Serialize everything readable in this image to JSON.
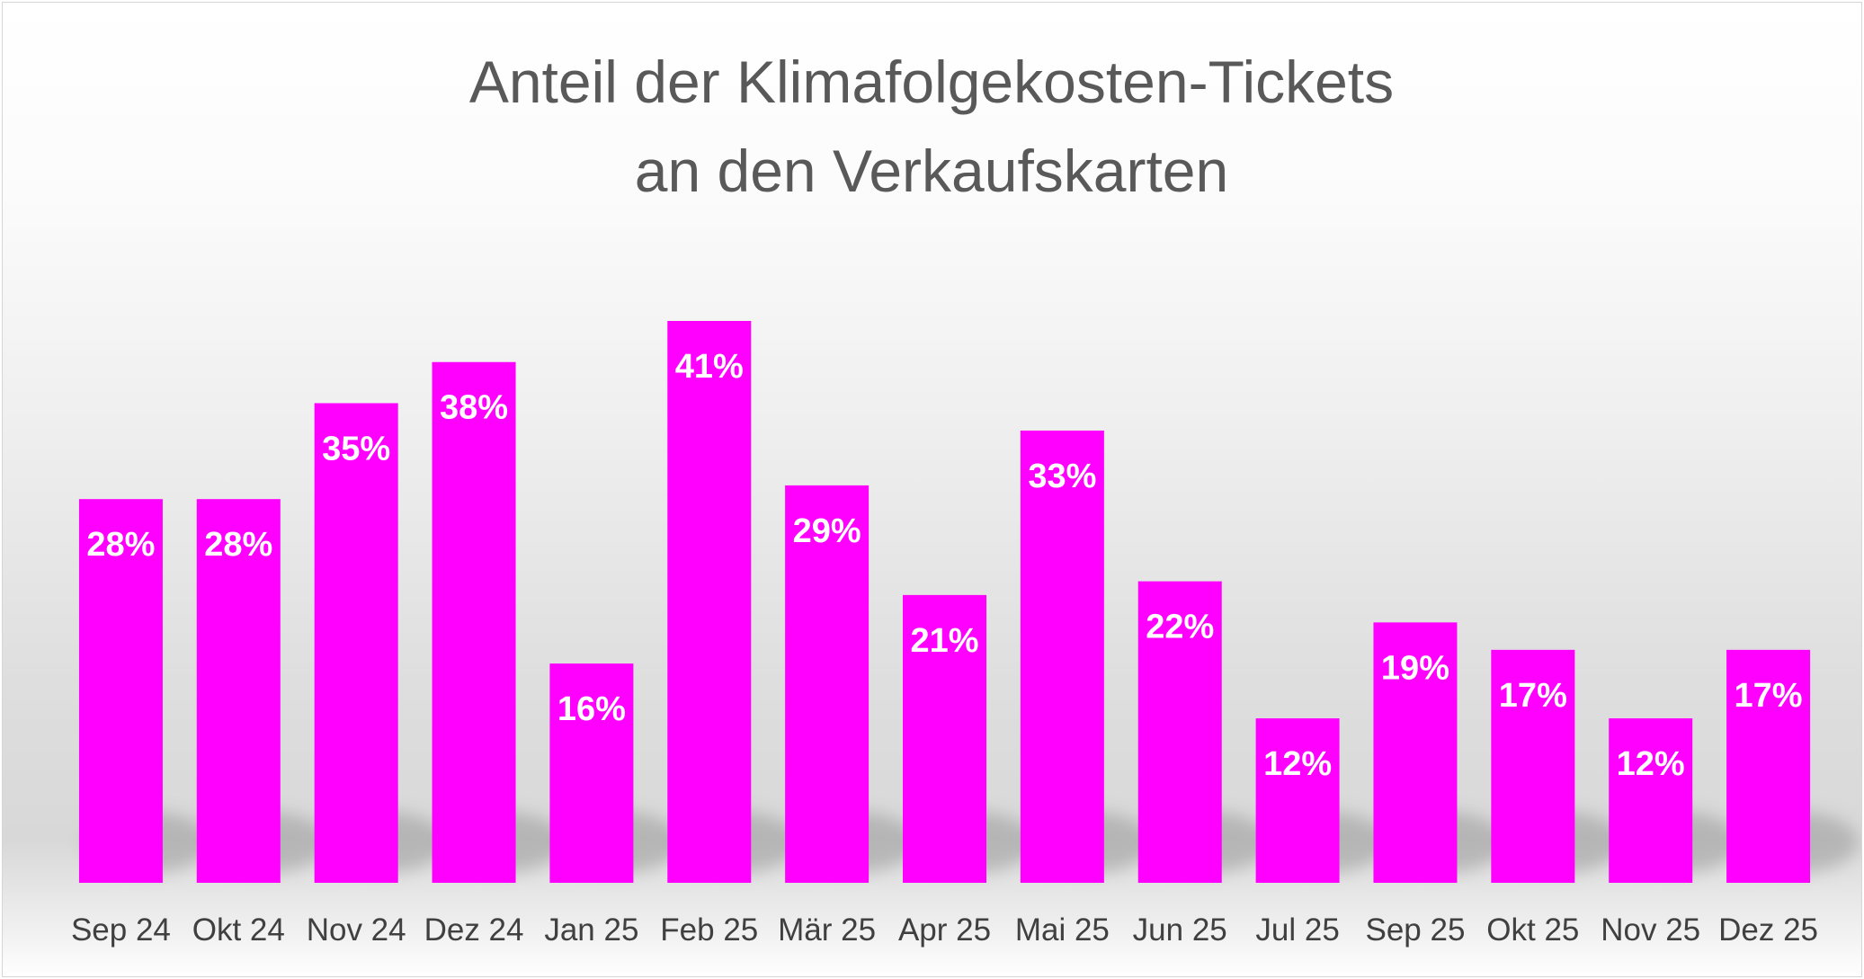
{
  "chart_data": {
    "type": "bar",
    "title": [
      "Anteil der Klimafolgekosten-Tickets",
      "an den Verkaufskarten"
    ],
    "xlabel": "",
    "ylabel": "",
    "categories": [
      "Sep 24",
      "Okt 24",
      "Nov 24",
      "Dez 24",
      "Jan 25",
      "Feb 25",
      "Mär 25",
      "Apr 25",
      "Mai 25",
      "Jun 25",
      "Jul 25",
      "Sep 25",
      "Okt 25",
      "Nov 25",
      "Dez 25"
    ],
    "values": [
      28,
      28,
      35,
      38,
      16,
      41,
      29,
      21,
      33,
      22,
      12,
      19,
      17,
      12,
      17
    ],
    "data_labels": [
      "28%",
      "28%",
      "35%",
      "38%",
      "16%",
      "41%",
      "29%",
      "21%",
      "33%",
      "22%",
      "12%",
      "19%",
      "17%",
      "12%",
      "17%"
    ],
    "ylim": [
      0,
      41
    ],
    "grid": false,
    "legend": "none",
    "bar_color": "#ff00ff",
    "label_color": "#ffffff"
  }
}
